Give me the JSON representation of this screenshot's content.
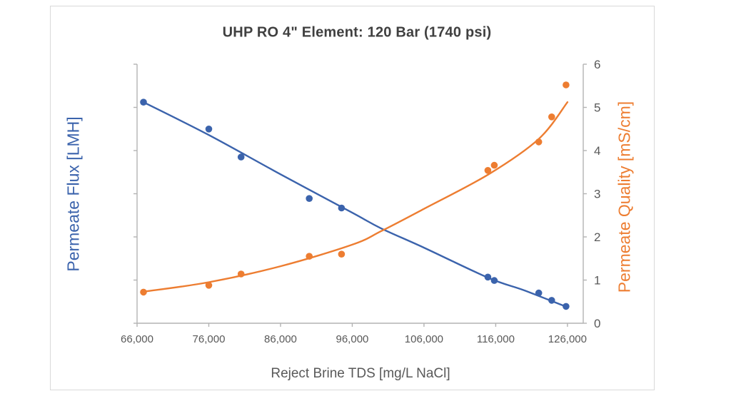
{
  "page": {
    "background_color": "#ffffff",
    "frame_border_color": "#d9d9d9"
  },
  "chart_data": {
    "type": "scatter",
    "title": "UHP RO 4\" Element: 120 Bar (1740 psi)",
    "xlabel": "Reject Brine TDS [mg/L NaCl]",
    "ylabel_left": "Permeate Flux [LMH]",
    "ylabel_right": "Permeate Quality [mS/cm]",
    "xlim": [
      66000,
      128200
    ],
    "x_ticks": [
      66000,
      76000,
      86000,
      96000,
      106000,
      116000,
      126000
    ],
    "x_tick_labels": [
      "66,000",
      "76,000",
      "86,000",
      "96,000",
      "106,000",
      "116,000",
      "126,000"
    ],
    "ylim_right": [
      0,
      6
    ],
    "y_ticks_right": [
      "0",
      "1",
      "2",
      "3",
      "4",
      "5",
      "6"
    ],
    "left_axis": {
      "tick_count": 7,
      "labels_visible": false
    },
    "grid": false,
    "legend": "none",
    "colors": {
      "flux": "#3b63ac",
      "quality": "#ed7d31",
      "axis_line": "#b3b3b3",
      "tick_text": "#595959",
      "title_text": "#404040"
    },
    "series": [
      {
        "name": "Permeate Flux",
        "axis": "left",
        "color": "#3b63ac",
        "x": [
          66900,
          76000,
          80500,
          90000,
          94500,
          114900,
          115800,
          122000,
          123800,
          125800
        ],
        "y": [
          5.12,
          4.5,
          3.85,
          2.89,
          2.67,
          1.07,
          0.99,
          0.7,
          0.53,
          0.39
        ],
        "trend": [
          [
            66900,
            5.12
          ],
          [
            76000,
            4.36
          ],
          [
            86000,
            3.45
          ],
          [
            96000,
            2.56
          ],
          [
            100000,
            2.2
          ],
          [
            106000,
            1.75
          ],
          [
            115000,
            1.05
          ],
          [
            120000,
            0.76
          ],
          [
            126000,
            0.37
          ]
        ]
      },
      {
        "name": "Permeate Quality",
        "axis": "right",
        "color": "#ed7d31",
        "x": [
          66900,
          76000,
          80500,
          90000,
          94500,
          114900,
          115800,
          122000,
          123800,
          125800
        ],
        "y": [
          0.72,
          0.88,
          1.14,
          1.55,
          1.6,
          3.54,
          3.66,
          4.2,
          4.78,
          5.52
        ],
        "trend": [
          [
            66900,
            0.73
          ],
          [
            76000,
            0.95
          ],
          [
            86000,
            1.32
          ],
          [
            96000,
            1.82
          ],
          [
            100000,
            2.13
          ],
          [
            106000,
            2.65
          ],
          [
            115000,
            3.45
          ],
          [
            122000,
            4.27
          ],
          [
            126000,
            5.12
          ]
        ]
      }
    ]
  }
}
